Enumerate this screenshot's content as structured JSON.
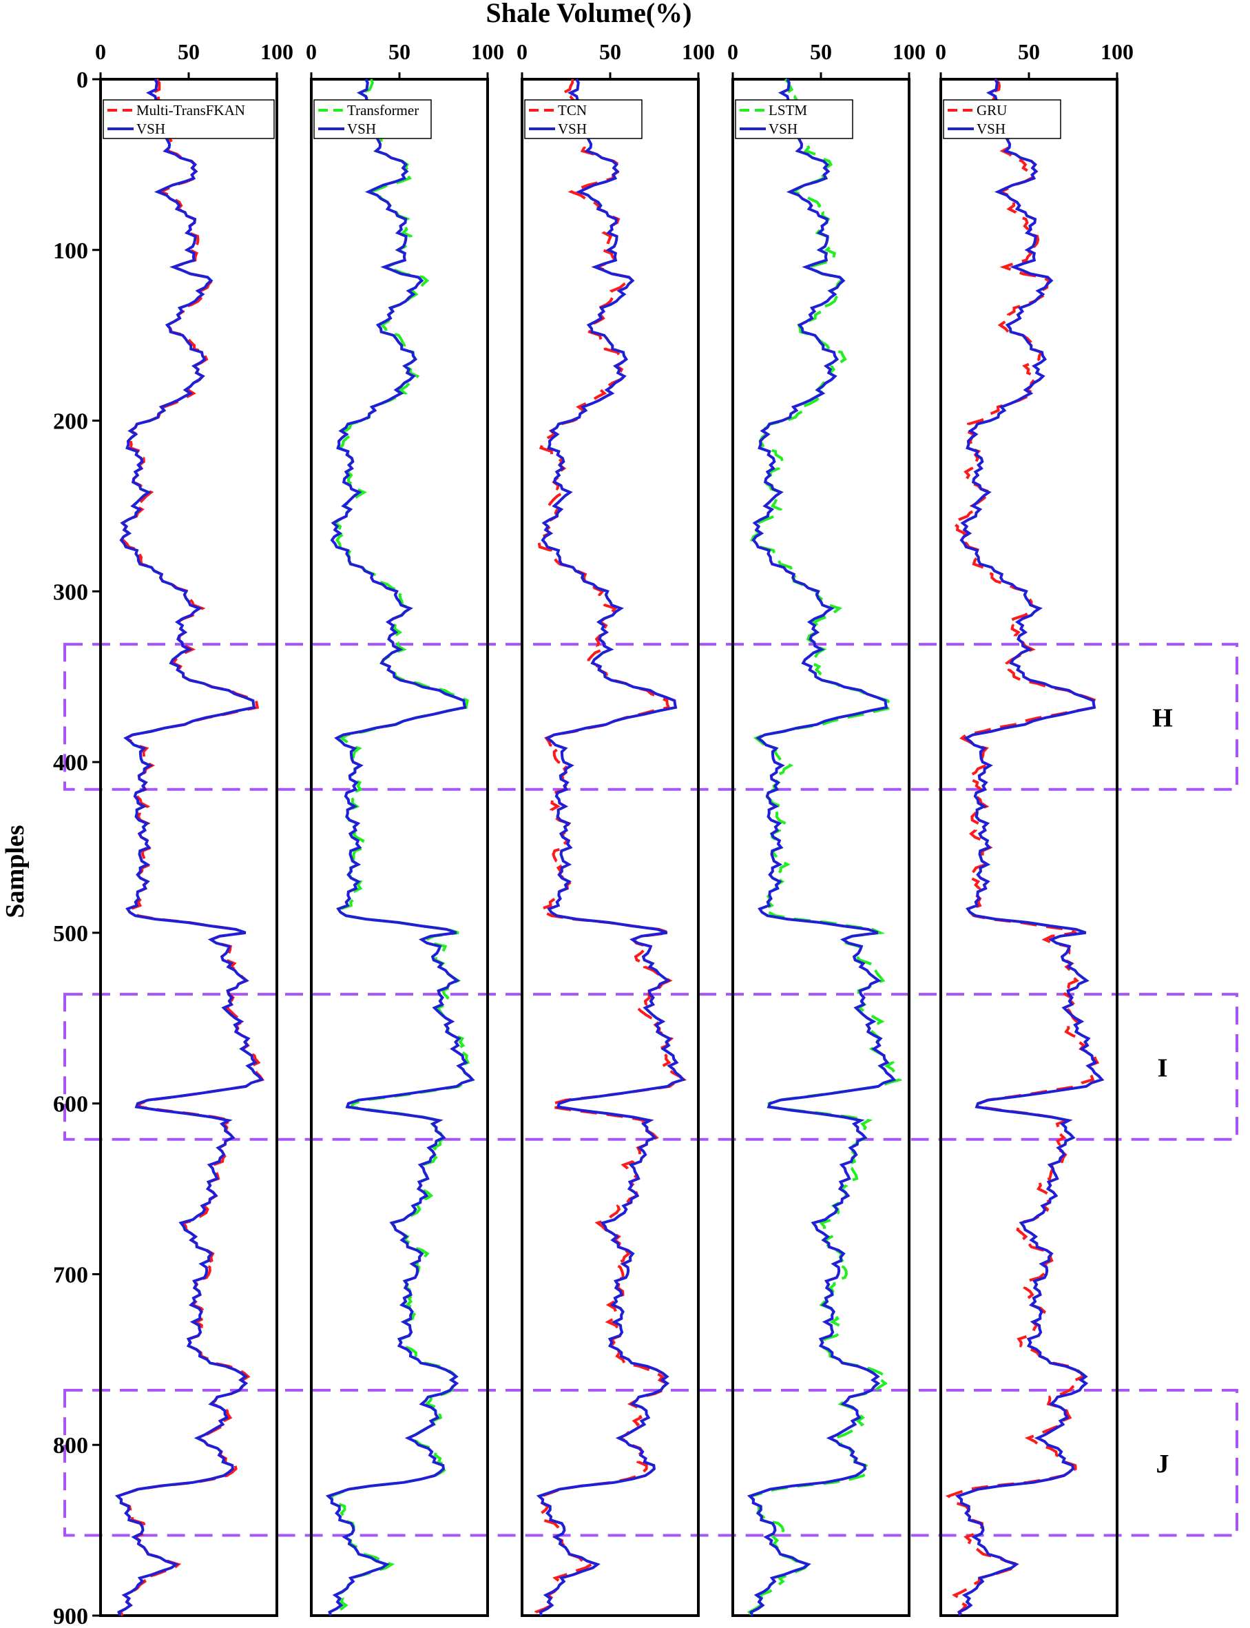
{
  "chart_data": {
    "type": "line",
    "title": "Shale Volume(%)",
    "ylabel": "Samples",
    "xlim": [
      0,
      100
    ],
    "ylim": [
      0,
      900
    ],
    "y_inverted": true,
    "x_ticks": [
      "0",
      "50",
      "100"
    ],
    "y_ticks": [
      "0",
      "100",
      "200",
      "300",
      "400",
      "500",
      "600",
      "700",
      "800",
      "900"
    ],
    "colors": {
      "vsh": "#1f1fd6",
      "multi": "#ff1a1a",
      "transformer": "#22ee22",
      "tcn": "#ff1a1a",
      "lstm": "#22ee22",
      "gru": "#ff1a1a",
      "zone_box": "#a855f7"
    },
    "zones": [
      {
        "label": "H",
        "y_range": [
          331,
          416
        ]
      },
      {
        "label": "I",
        "y_range": [
          536,
          621
        ]
      },
      {
        "label": "J",
        "y_range": [
          768,
          853
        ]
      }
    ],
    "vsh_samples": [
      0,
      40,
      55,
      65,
      80,
      95,
      105,
      110,
      118,
      130,
      145,
      160,
      172,
      180,
      200,
      207,
      220,
      225,
      232,
      240,
      252,
      268,
      285,
      300,
      310,
      320,
      333,
      345,
      355,
      365,
      375,
      385,
      395,
      410,
      425,
      445,
      460,
      475,
      490,
      500,
      503,
      510,
      515,
      525,
      540,
      555,
      575,
      590,
      600,
      610,
      640,
      660,
      672,
      690,
      710,
      730,
      745,
      762,
      775,
      785,
      795,
      810,
      820,
      826,
      835,
      850,
      860,
      870,
      880,
      890,
      900
    ],
    "vsh_values": [
      30,
      38,
      55,
      36,
      50,
      52,
      52,
      44,
      61,
      52,
      40,
      56,
      55,
      52,
      28,
      17,
      19,
      25,
      18,
      24,
      20,
      13,
      26,
      45,
      53,
      45,
      47,
      42,
      60,
      88,
      58,
      18,
      24,
      24,
      21,
      25,
      23,
      24,
      21,
      85,
      60,
      75,
      68,
      80,
      72,
      78,
      85,
      83,
      20,
      70,
      64,
      61,
      48,
      61,
      54,
      56,
      53,
      83,
      65,
      72,
      58,
      72,
      66,
      19,
      13,
      23,
      22,
      40,
      22,
      16,
      12
    ],
    "series": [
      {
        "name": "Multi-TransFKAN",
        "color_key": "multi",
        "dash": "24 14",
        "offset": 0.9,
        "jitter": 1.0
      },
      {
        "name": "Transformer",
        "color_key": "transformer",
        "dash": "24 14",
        "offset": 1.4,
        "jitter": 1.6
      },
      {
        "name": "TCN",
        "color_key": "tcn",
        "dash": "24 14",
        "offset": -1.6,
        "jitter": 2.8
      },
      {
        "name": "LSTM",
        "color_key": "lstm",
        "dash": "24 14",
        "offset": 1.7,
        "jitter": 3.0
      },
      {
        "name": "GRU",
        "color_key": "gru",
        "dash": "24 14",
        "offset": -2.0,
        "jitter": 3.6
      }
    ],
    "legend_vsh_label": "VSH",
    "legend_placement": "top-left"
  }
}
